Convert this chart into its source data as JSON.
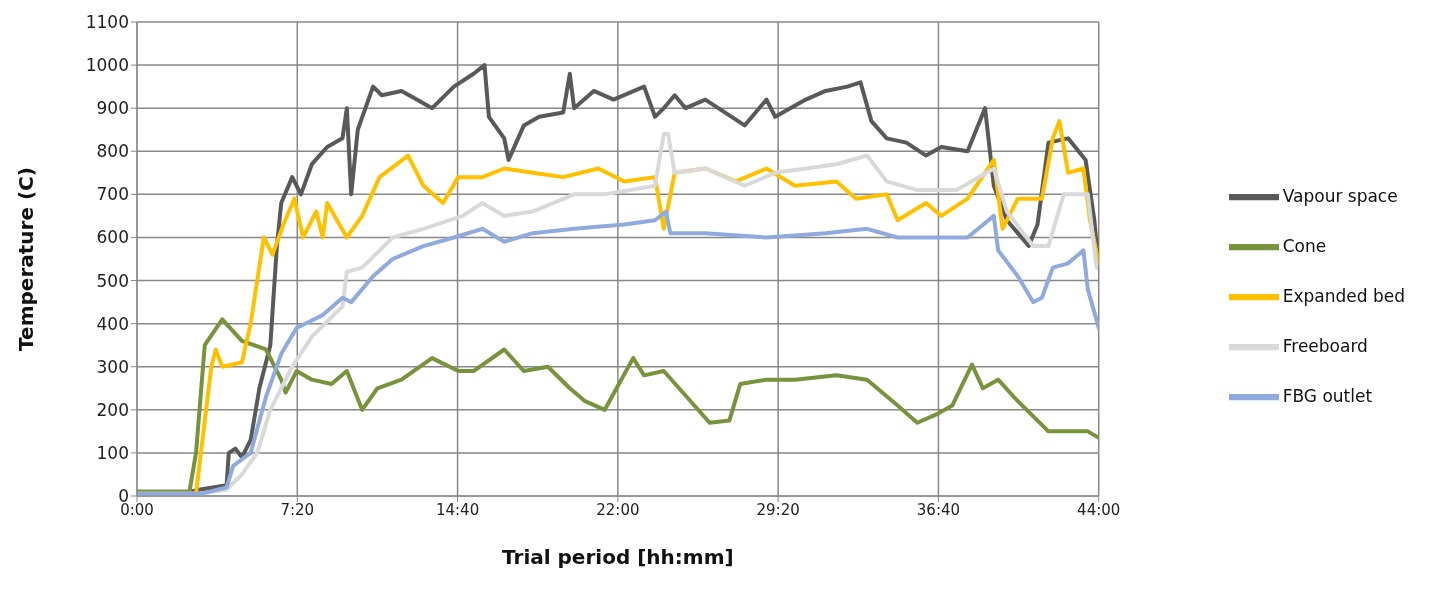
{
  "chart_data": {
    "type": "line",
    "xlabel": "Trial period [hh:mm]",
    "ylabel": "Temperature (C)",
    "xlim": [
      0,
      44
    ],
    "xticks": [
      {
        "value": 0,
        "label": "0:00"
      },
      {
        "value": 7.333,
        "label": "7:20"
      },
      {
        "value": 14.667,
        "label": "14:40"
      },
      {
        "value": 22,
        "label": "22:00"
      },
      {
        "value": 29.333,
        "label": "29:20"
      },
      {
        "value": 36.667,
        "label": "36:40"
      },
      {
        "value": 44,
        "label": "44:00"
      }
    ],
    "ylim": [
      0,
      1100
    ],
    "yticks": [
      0,
      100,
      200,
      300,
      400,
      500,
      600,
      700,
      800,
      900,
      1000,
      1100
    ],
    "grid": true,
    "legend": "right",
    "marker": "none",
    "line_style": "solid",
    "series": [
      {
        "name": "Vapour space",
        "color": "#595959",
        "x": [
          0,
          2.4,
          2.9,
          4.1,
          4.2,
          4.5,
          4.8,
          5.2,
          5.6,
          6.1,
          6.4,
          6.6,
          7.1,
          7.5,
          8,
          8.7,
          9.4,
          9.6,
          9.8,
          10.1,
          10.8,
          11.2,
          12.1,
          12.8,
          13.5,
          14.5,
          15.4,
          15.9,
          16.1,
          16.8,
          17,
          17.7,
          18.4,
          19.5,
          19.8,
          20,
          20.9,
          21.8,
          23.2,
          23.7,
          24.1,
          24.6,
          25.1,
          26,
          27.8,
          28.8,
          29.2,
          30.6,
          31.5,
          32.5,
          33.1,
          33.6,
          34.3,
          35.2,
          36.1,
          36.8,
          38,
          38.8,
          39.2,
          39.8,
          40.8,
          41.2,
          41.7,
          42.6,
          43.4,
          43.8,
          44
        ],
        "values": [
          10,
          10,
          15,
          25,
          100,
          110,
          90,
          130,
          250,
          350,
          580,
          680,
          740,
          700,
          770,
          810,
          830,
          900,
          700,
          850,
          950,
          930,
          940,
          920,
          900,
          950,
          980,
          1000,
          880,
          830,
          780,
          860,
          880,
          890,
          980,
          900,
          940,
          920,
          950,
          880,
          900,
          930,
          900,
          920,
          860,
          920,
          880,
          920,
          940,
          950,
          960,
          870,
          830,
          820,
          790,
          810,
          800,
          900,
          720,
          640,
          580,
          630,
          820,
          830,
          780,
          640,
          530
        ]
      },
      {
        "name": "Cone",
        "color": "#77933c",
        "x": [
          0,
          2.4,
          2.7,
          3.1,
          3.9,
          4.8,
          5.9,
          6.6,
          6.8,
          7.3,
          8,
          8.9,
          9.6,
          10.3,
          11,
          12.1,
          13.5,
          14.7,
          15.4,
          16.8,
          17.7,
          18.8,
          19.8,
          20.5,
          21.4,
          22.7,
          23.2,
          24.1,
          25.5,
          26.2,
          27.1,
          27.6,
          28.8,
          30.1,
          32,
          33.4,
          34.8,
          35.7,
          36.6,
          37.3,
          38.2,
          38.7,
          39.4,
          40.3,
          41.7,
          42.6,
          43.5,
          44
        ],
        "values": [
          10,
          10,
          100,
          350,
          410,
          360,
          340,
          270,
          240,
          290,
          270,
          260,
          290,
          200,
          250,
          270,
          320,
          290,
          290,
          340,
          290,
          300,
          250,
          220,
          200,
          320,
          280,
          290,
          210,
          170,
          175,
          260,
          270,
          270,
          280,
          270,
          210,
          170,
          190,
          210,
          305,
          250,
          270,
          220,
          150,
          150,
          150,
          135
        ]
      },
      {
        "name": "Expanded bed",
        "color": "#ffc000",
        "x": [
          0,
          2.7,
          3.4,
          3.6,
          3.9,
          4.8,
          5.2,
          5.8,
          6.2,
          6.7,
          7.2,
          7.6,
          8.2,
          8.5,
          8.7,
          9.6,
          10.3,
          11.1,
          12.4,
          13.1,
          14,
          14.7,
          15.8,
          16.8,
          18.1,
          19.5,
          21.1,
          22.3,
          23.7,
          24.1,
          24.6,
          26,
          27.4,
          28.8,
          30.1,
          32,
          32.9,
          34.3,
          34.8,
          36.1,
          36.8,
          38,
          39.2,
          39.6,
          40.3,
          41.4,
          41.9,
          42.2,
          42.6,
          43.3,
          43.6,
          44
        ],
        "values": [
          5,
          5,
          300,
          340,
          300,
          310,
          400,
          600,
          560,
          630,
          690,
          600,
          660,
          600,
          680,
          600,
          650,
          740,
          790,
          720,
          680,
          740,
          740,
          760,
          750,
          740,
          760,
          730,
          740,
          620,
          750,
          760,
          730,
          760,
          720,
          730,
          690,
          700,
          640,
          680,
          650,
          690,
          780,
          620,
          690,
          690,
          830,
          870,
          750,
          760,
          640,
          540
        ]
      },
      {
        "name": "Freeboard",
        "color": "#d9d9d9",
        "x": [
          0,
          2.9,
          4.1,
          4.8,
          5.5,
          6.1,
          7.1,
          8,
          9.4,
          9.6,
          10.3,
          11.7,
          13.1,
          14.9,
          15.8,
          16.8,
          18.1,
          20,
          21.4,
          23.7,
          24.1,
          24.3,
          24.6,
          26,
          27.8,
          29.2,
          32,
          33.4,
          34.3,
          35.7,
          37.5,
          39.2,
          39.8,
          41,
          41.7,
          42.4,
          43.5,
          43.9
        ],
        "values": [
          5,
          5,
          15,
          50,
          100,
          200,
          300,
          370,
          440,
          520,
          530,
          600,
          620,
          650,
          680,
          650,
          660,
          700,
          700,
          720,
          840,
          840,
          750,
          760,
          720,
          750,
          770,
          790,
          730,
          710,
          710,
          760,
          660,
          580,
          580,
          700,
          700,
          530
        ]
      },
      {
        "name": "FBG outlet",
        "color": "#8faadc",
        "x": [
          0,
          2.9,
          4.1,
          4.4,
          5.2,
          5.9,
          6.6,
          7.3,
          8.5,
          9.4,
          9.8,
          10.8,
          11.7,
          13.1,
          14.5,
          15.8,
          16.8,
          18.1,
          20,
          22.3,
          23.7,
          24.2,
          24.4,
          26,
          28.8,
          31.5,
          33.4,
          34.8,
          38,
          39.2,
          39.4,
          40.3,
          41,
          41.4,
          41.9,
          42.6,
          43.3,
          43.5,
          44
        ],
        "values": [
          5,
          5,
          20,
          70,
          100,
          230,
          330,
          390,
          420,
          460,
          450,
          510,
          550,
          580,
          600,
          620,
          590,
          610,
          620,
          630,
          640,
          660,
          610,
          610,
          600,
          610,
          620,
          600,
          600,
          650,
          570,
          510,
          450,
          460,
          530,
          540,
          570,
          480,
          390
        ]
      }
    ]
  }
}
